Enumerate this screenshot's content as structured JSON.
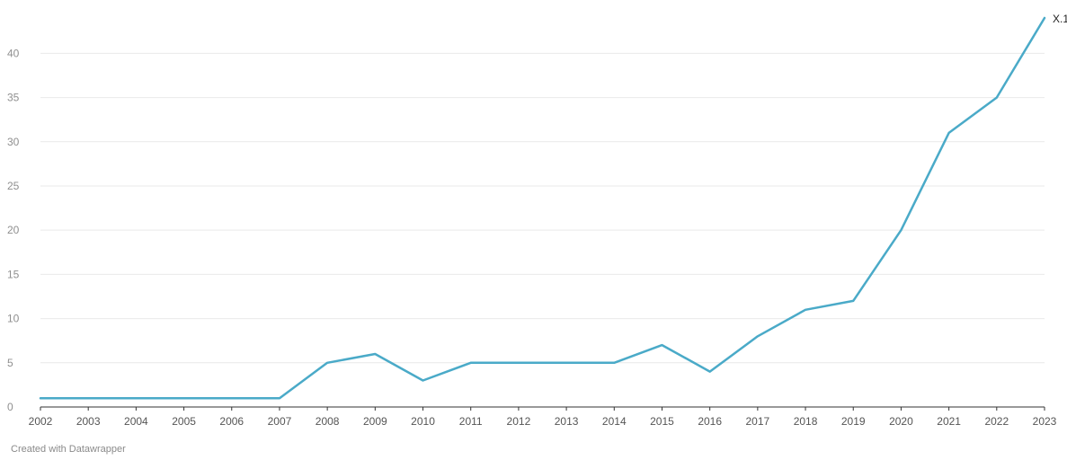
{
  "credit": "Created with Datawrapper",
  "chart_data": {
    "type": "line",
    "title": "",
    "xlabel": "",
    "ylabel": "",
    "x": [
      2002,
      2003,
      2004,
      2005,
      2006,
      2007,
      2008,
      2009,
      2010,
      2011,
      2012,
      2013,
      2014,
      2015,
      2016,
      2017,
      2018,
      2019,
      2020,
      2021,
      2022,
      2023
    ],
    "x_tick_labels": [
      "2002",
      "2003",
      "2004",
      "2005",
      "2006",
      "2007",
      "2008",
      "2009",
      "2010",
      "2011",
      "2012",
      "2013",
      "2014",
      "2015",
      "2016",
      "2017",
      "2018",
      "2019",
      "2020",
      "2021",
      "2022",
      "2023"
    ],
    "y_ticks": [
      0,
      5,
      10,
      15,
      20,
      25,
      30,
      35,
      40
    ],
    "y_tick_labels": [
      "0",
      "5",
      "10",
      "15",
      "20",
      "25",
      "30",
      "35",
      "40"
    ],
    "ylim": [
      0,
      44
    ],
    "grid": true,
    "series": [
      {
        "name": "X.1",
        "color": "#4aaac8",
        "values": [
          1,
          1,
          1,
          1,
          1,
          1,
          5,
          6,
          3,
          5,
          5,
          5,
          5,
          7,
          4,
          8,
          11,
          12,
          20,
          31,
          35,
          44
        ]
      }
    ]
  }
}
